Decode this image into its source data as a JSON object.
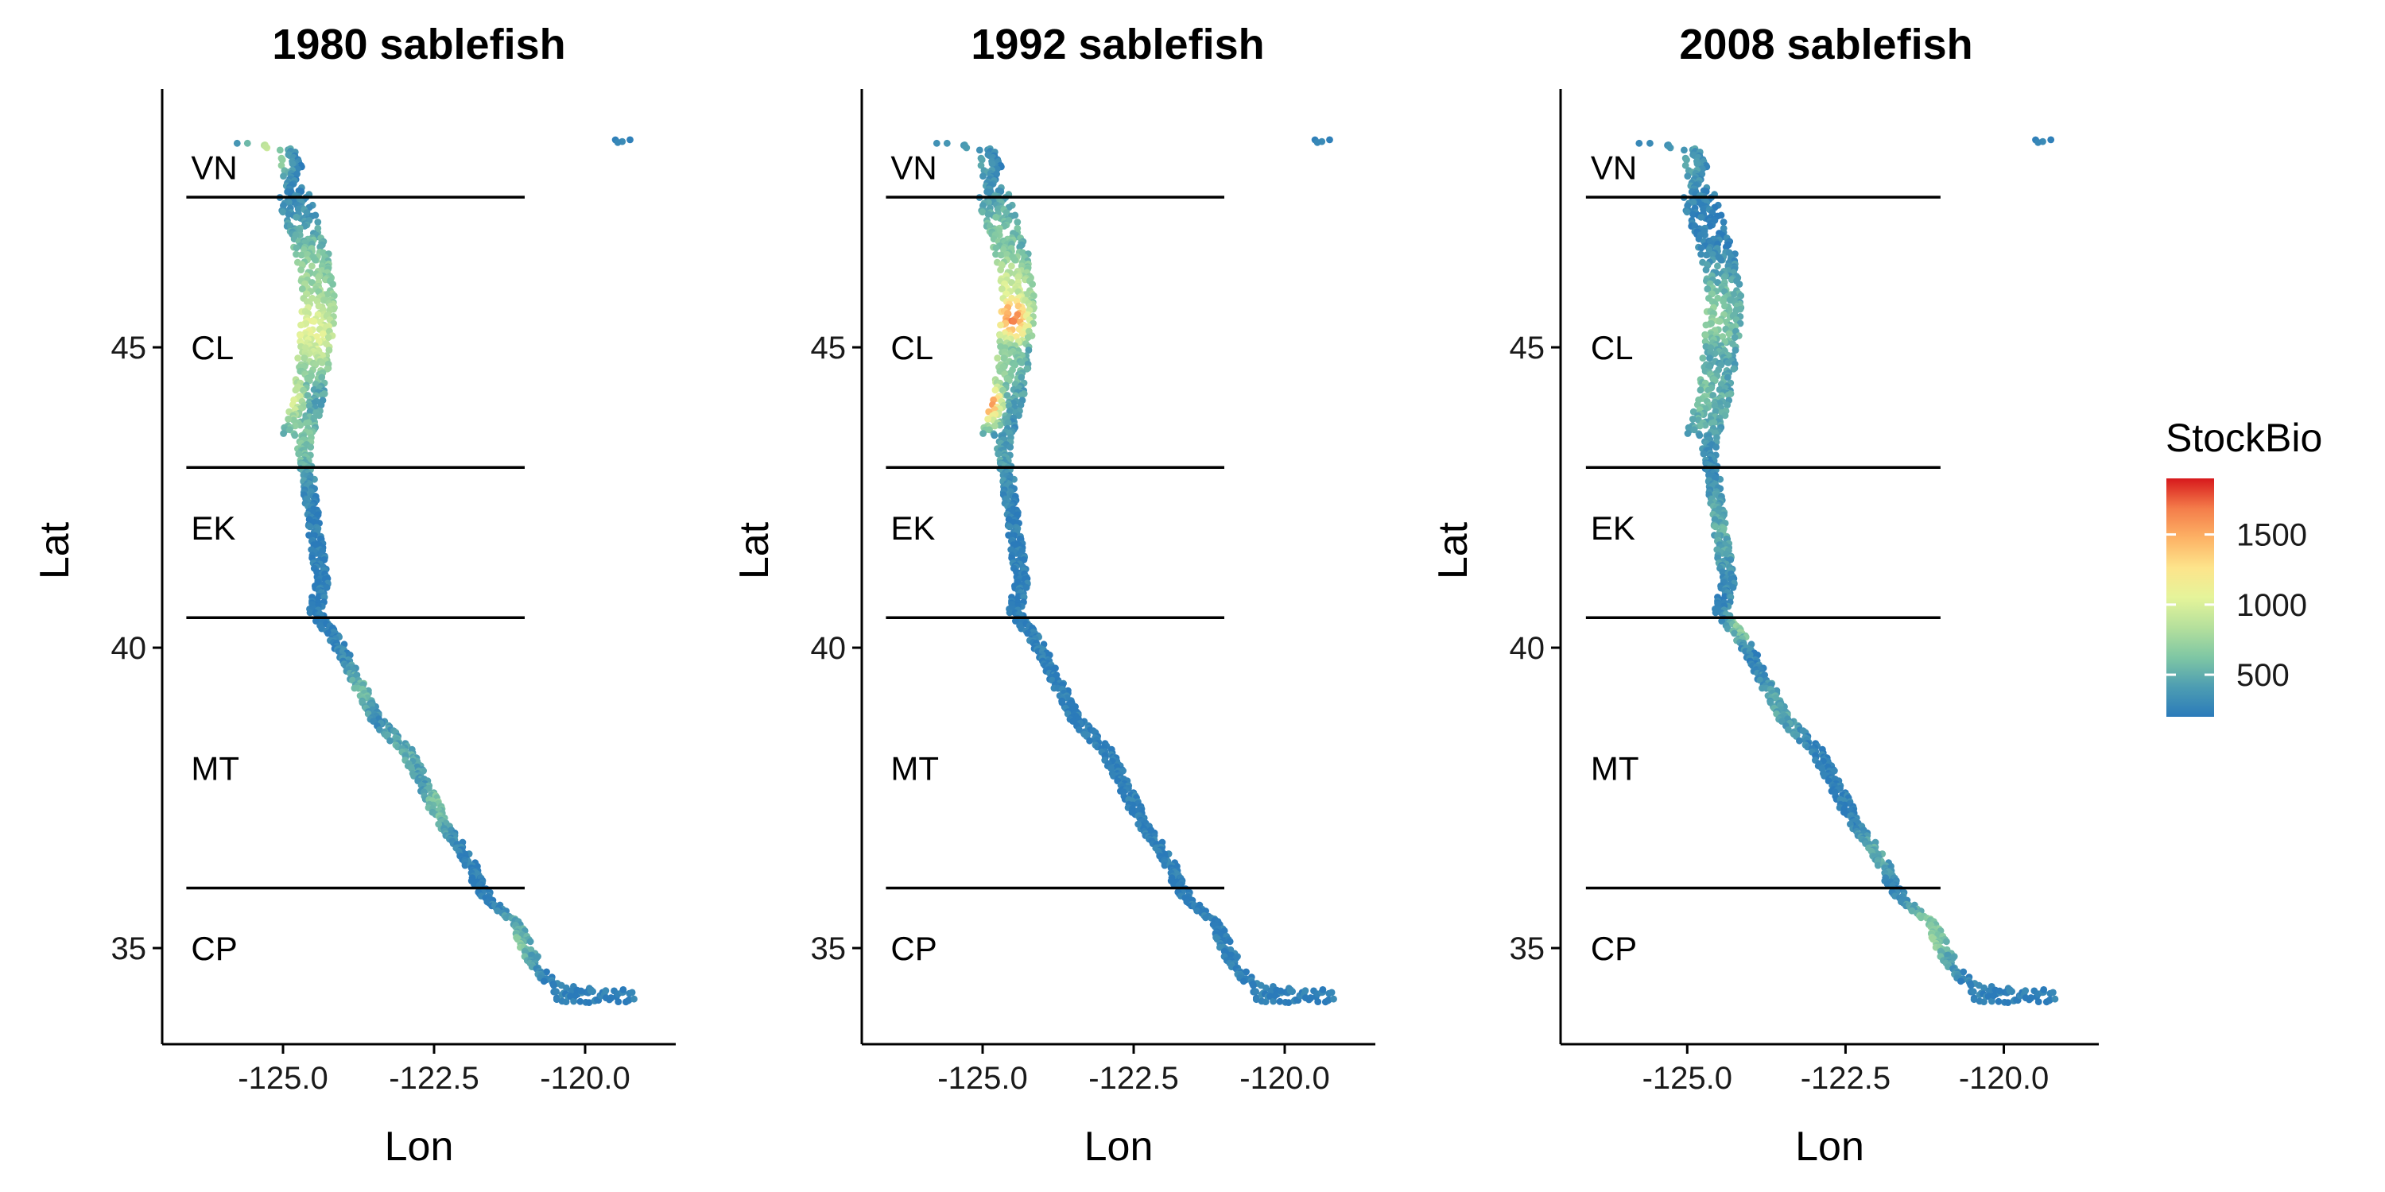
{
  "chart_data": {
    "type": "scatter",
    "x_label": "Lon",
    "y_label": "Lat",
    "xlim": [
      -127.0,
      -118.5
    ],
    "ylim": [
      33.4,
      49.3
    ],
    "x_ticks": [
      -125.0,
      -122.5,
      -120.0
    ],
    "x_tick_labels": [
      "-125.0",
      "-122.5",
      "-120.0"
    ],
    "y_ticks": [
      35,
      40,
      45
    ],
    "y_tick_labels": [
      "35",
      "40",
      "45"
    ],
    "region_boundary_lats": [
      47.5,
      43.0,
      40.5,
      36.0
    ],
    "region_line_lon_range": [
      -126.6,
      -121.0
    ],
    "regions": [
      {
        "label": "VN",
        "lat": 48.0
      },
      {
        "label": "CL",
        "lat": 45.0
      },
      {
        "label": "EK",
        "lat": 42.0
      },
      {
        "label": "MT",
        "lat": 38.0
      },
      {
        "label": "CP",
        "lat": 35.0
      }
    ],
    "legend": {
      "title": "StockBio",
      "range": [
        200,
        1900
      ],
      "ticks": [
        500,
        1000,
        1500
      ],
      "tick_labels": [
        "500",
        "1000",
        "1500"
      ],
      "colors": [
        "#2b7bba",
        "#4d9db2",
        "#7fc7a4",
        "#b5e09c",
        "#e5f49a",
        "#fde48b",
        "#fdb265",
        "#f47c4a",
        "#d7191c"
      ],
      "position": "right"
    },
    "coastline": [
      [
        -125.6,
        48.4
      ],
      [
        -124.8,
        48.3
      ],
      [
        -124.7,
        47.8
      ],
      [
        -124.5,
        47.2
      ],
      [
        -124.3,
        46.6
      ],
      [
        -124.2,
        46.0
      ],
      [
        -124.2,
        45.4
      ],
      [
        -124.3,
        44.6
      ],
      [
        -124.4,
        44.0
      ],
      [
        -124.6,
        43.3
      ],
      [
        -124.5,
        42.6
      ],
      [
        -124.4,
        41.8
      ],
      [
        -124.3,
        41.1
      ],
      [
        -124.4,
        40.6
      ],
      [
        -124.0,
        40.0
      ],
      [
        -123.7,
        39.4
      ],
      [
        -123.4,
        38.8
      ],
      [
        -122.9,
        38.3
      ],
      [
        -122.6,
        37.7
      ],
      [
        -122.3,
        37.1
      ],
      [
        -121.9,
        36.5
      ],
      [
        -121.6,
        35.9
      ],
      [
        -121.1,
        35.4
      ],
      [
        -120.8,
        34.8
      ],
      [
        -120.5,
        34.4
      ],
      [
        -119.8,
        34.3
      ],
      [
        -119.2,
        34.1
      ]
    ],
    "facets": [
      {
        "title": "1980 sablefish",
        "hotspots": [
          {
            "lat": 48.15,
            "lon": -125.3,
            "value": 1050,
            "spread": 0.35
          },
          {
            "lat": 45.3,
            "lon": -124.55,
            "value": 1050,
            "spread": 0.7
          },
          {
            "lat": 44.2,
            "lon": -124.95,
            "value": 1100,
            "spread": 0.4
          },
          {
            "lat": 46.0,
            "lon": -124.6,
            "value": 750,
            "spread": 0.8
          },
          {
            "lat": 43.5,
            "lon": -124.7,
            "value": 650,
            "spread": 0.5
          },
          {
            "lat": 39.3,
            "lon": -123.7,
            "value": 550,
            "spread": 0.4
          },
          {
            "lat": 38.2,
            "lon": -123.0,
            "value": 500,
            "spread": 0.6
          },
          {
            "lat": 37.4,
            "lon": -122.4,
            "value": 620,
            "spread": 0.4
          },
          {
            "lat": 35.0,
            "lon": -121.2,
            "value": 650,
            "spread": 0.4
          }
        ]
      },
      {
        "title": "1992 sablefish",
        "hotspots": [
          {
            "lat": 48.0,
            "lon": -125.3,
            "value": 500,
            "spread": 0.5
          },
          {
            "lat": 46.8,
            "lon": -124.7,
            "value": 650,
            "spread": 0.6
          },
          {
            "lat": 45.5,
            "lon": -124.5,
            "value": 1650,
            "spread": 0.35
          },
          {
            "lat": 45.9,
            "lon": -124.6,
            "value": 1000,
            "spread": 0.6
          },
          {
            "lat": 44.1,
            "lon": -124.95,
            "value": 1750,
            "spread": 0.3
          },
          {
            "lat": 44.8,
            "lon": -124.8,
            "value": 800,
            "spread": 0.6
          },
          {
            "lat": 43.3,
            "lon": -124.8,
            "value": 450,
            "spread": 0.5
          }
        ]
      },
      {
        "title": "2008 sablefish",
        "hotspots": [
          {
            "lat": 48.1,
            "lon": -125.1,
            "value": 450,
            "spread": 0.5
          },
          {
            "lat": 45.5,
            "lon": -124.6,
            "value": 700,
            "spread": 0.6
          },
          {
            "lat": 44.3,
            "lon": -124.8,
            "value": 600,
            "spread": 0.7
          },
          {
            "lat": 42.0,
            "lon": -124.4,
            "value": 500,
            "spread": 0.6
          },
          {
            "lat": 40.45,
            "lon": -124.1,
            "value": 850,
            "spread": 0.25
          },
          {
            "lat": 39.0,
            "lon": -123.5,
            "value": 480,
            "spread": 0.5
          },
          {
            "lat": 36.6,
            "lon": -122.0,
            "value": 480,
            "spread": 0.4
          },
          {
            "lat": 35.2,
            "lon": -121.2,
            "value": 700,
            "spread": 0.5
          }
        ]
      }
    ]
  }
}
